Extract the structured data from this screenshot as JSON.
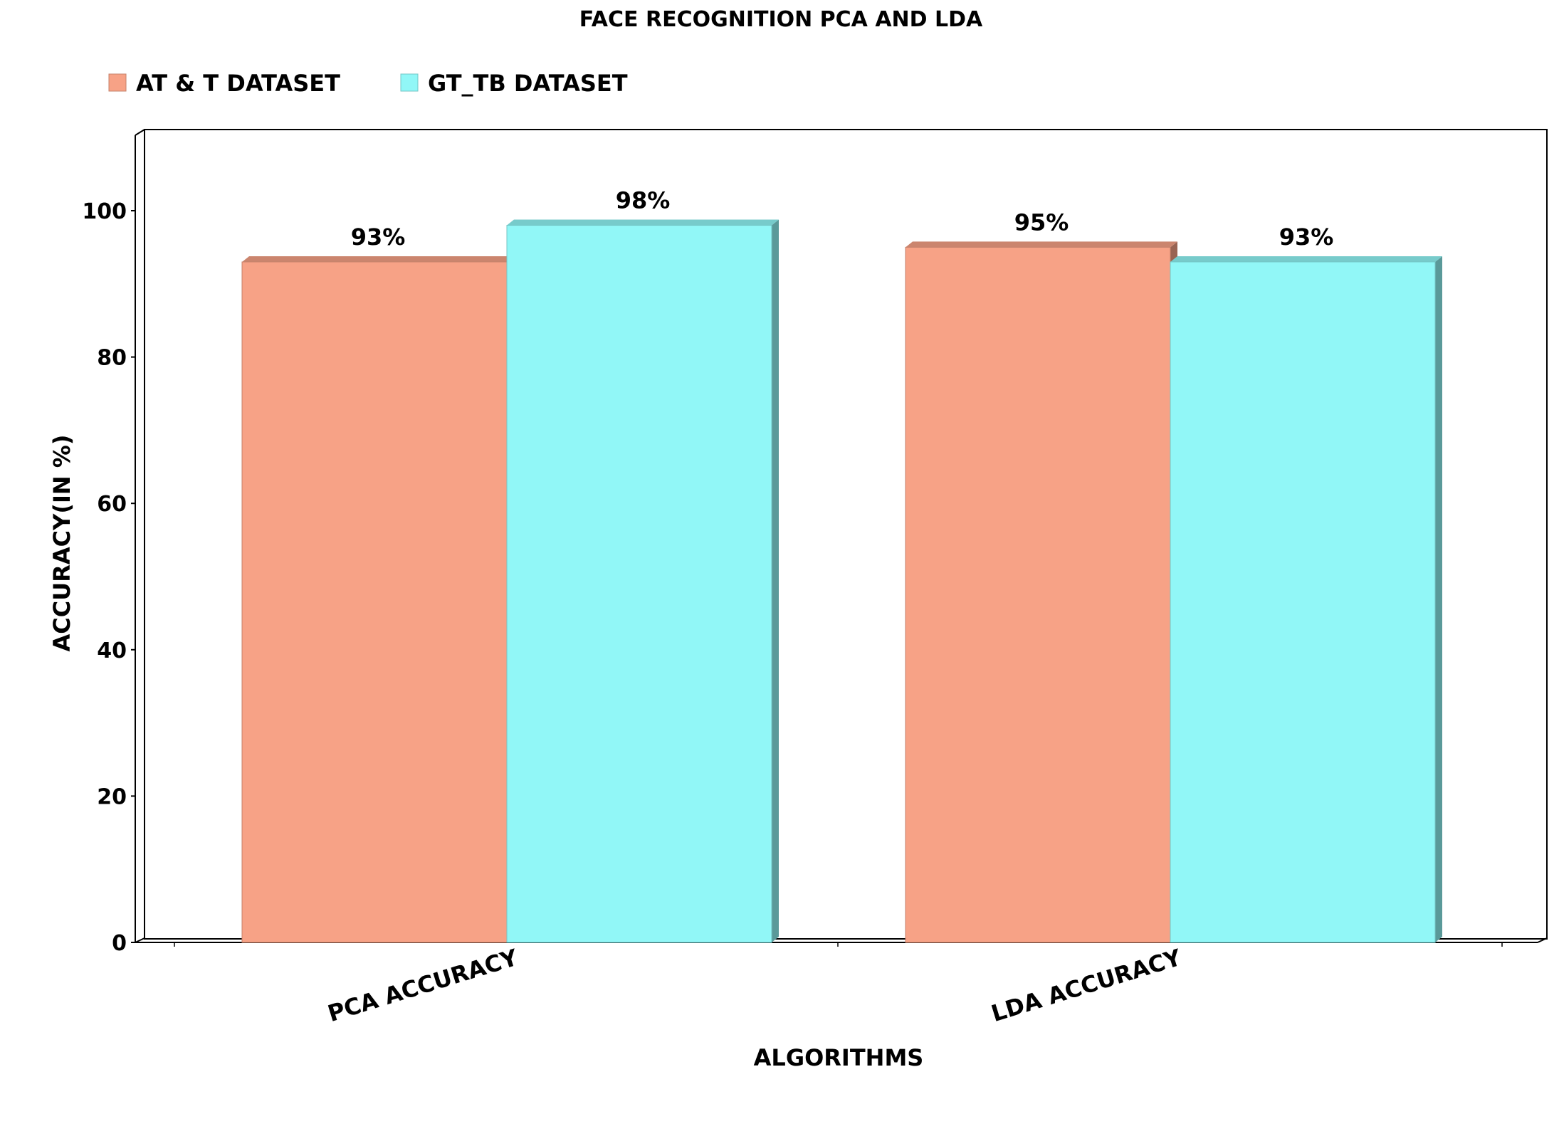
{
  "chart_data": {
    "type": "bar",
    "title": "FACE RECOGNITION PCA AND LDA",
    "xlabel": "ALGORITHMS",
    "ylabel": "ACCURACY(IN %)",
    "categories": [
      "PCA ACCURACY",
      "LDA ACCURACY"
    ],
    "series": [
      {
        "name": "AT & T DATASET",
        "values": [
          93,
          95
        ],
        "labels": [
          "93%",
          "95%"
        ],
        "color": "#f7a286"
      },
      {
        "name": "GT_TB DATASET",
        "values": [
          98,
          93
        ],
        "labels": [
          "98%",
          "93%"
        ],
        "color": "#91f7f7"
      }
    ],
    "yticks": [
      "0",
      "20",
      "40",
      "60",
      "80",
      "100"
    ],
    "ylim": [
      0,
      110
    ],
    "legend": "top-left",
    "grid": false
  }
}
